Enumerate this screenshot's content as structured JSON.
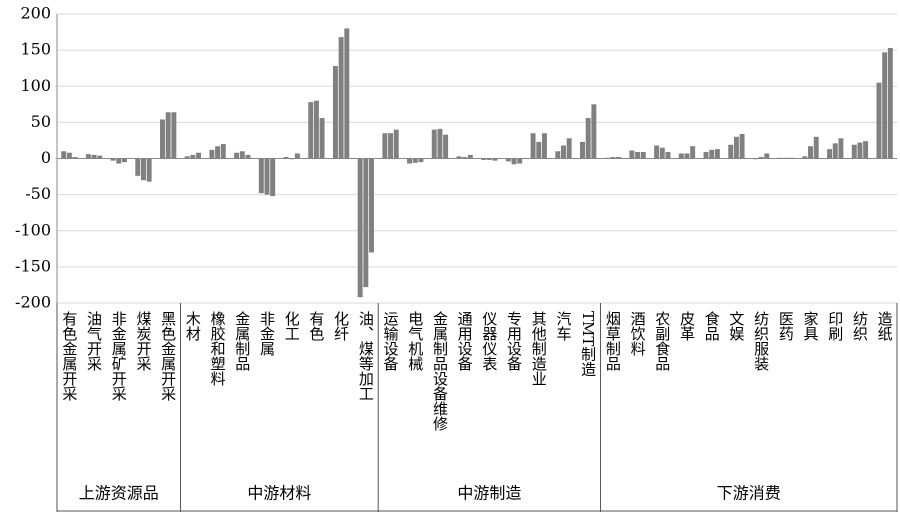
{
  "chart_data": {
    "type": "bar",
    "groups": [
      {
        "label": "上游资源品",
        "categories": [
          "有色金属开采",
          "油气开采",
          "非金属矿开采",
          "煤炭开采",
          "黑色金属开采"
        ]
      },
      {
        "label": "中游材料",
        "categories": [
          "木材",
          "橡胶和塑料",
          "金属制品",
          "非金属",
          "化工",
          "有色",
          "化纤",
          "油、煤等加工"
        ]
      },
      {
        "label": "中游制造",
        "categories": [
          "运输设备",
          "电气机械",
          "金属制品设备维修",
          "通用设备",
          "仪器仪表",
          "专用设备",
          "其他制造业",
          "汽车",
          "TMT制造"
        ]
      },
      {
        "label": "下游消费",
        "categories": [
          "烟草制品",
          "酒饮料",
          "农副食品",
          "皮革",
          "食品",
          "文娱",
          "纺织服装",
          "医药",
          "家具",
          "印刷",
          "纺织",
          "造纸"
        ]
      }
    ],
    "series": [
      {
        "color": "#808080",
        "values": [
          10,
          6,
          -3,
          -24,
          54,
          3,
          12,
          8,
          -48,
          2,
          78,
          128,
          -192,
          35,
          -7,
          40,
          3,
          -2,
          -4,
          35,
          10,
          23,
          1,
          11,
          18,
          7,
          9,
          19,
          -1,
          1,
          3,
          13,
          19,
          105
        ]
      },
      {
        "color": "#808080",
        "values": [
          8,
          5,
          -7,
          -30,
          64,
          5,
          17,
          10,
          -50,
          -1,
          80,
          168,
          -178,
          35,
          -6,
          41,
          2,
          -2,
          -8,
          23,
          18,
          56,
          2,
          9,
          15,
          7,
          12,
          30,
          2,
          1,
          17,
          21,
          22,
          147
        ]
      },
      {
        "color": "#808080",
        "values": [
          2,
          4,
          -5,
          -32,
          64,
          8,
          20,
          5,
          -52,
          7,
          56,
          180,
          -130,
          40,
          -5,
          33,
          5,
          -3,
          -7,
          35,
          28,
          75,
          2,
          9,
          9,
          17,
          13,
          34,
          7,
          1,
          30,
          28,
          24,
          153
        ]
      }
    ],
    "ylim": [
      -200,
      200
    ],
    "yticks": [
      -200,
      -150,
      -100,
      -50,
      0,
      50,
      100,
      150,
      200
    ],
    "grid": true
  }
}
